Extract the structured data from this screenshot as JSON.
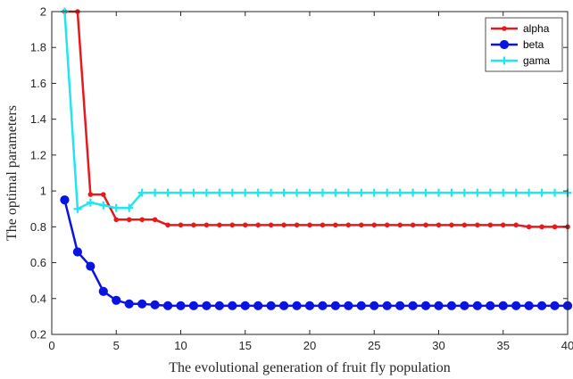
{
  "chart_data": {
    "type": "line",
    "xlabel": "The  evolutional generation of fruit fly population",
    "ylabel": "The optimal parameters",
    "xlim": [
      0,
      40
    ],
    "ylim": [
      0.2,
      2
    ],
    "x_ticks": [
      "0",
      "5",
      "10",
      "15",
      "20",
      "25",
      "30",
      "35",
      "40"
    ],
    "y_ticks": [
      "0.2",
      "0.4",
      "0.6",
      "0.8",
      "1",
      "1.2",
      "1.4",
      "1.6",
      "1.8",
      "2"
    ],
    "grid": false,
    "legend_position": "top-right",
    "x": [
      1,
      2,
      3,
      4,
      5,
      6,
      7,
      8,
      9,
      10,
      11,
      12,
      13,
      14,
      15,
      16,
      17,
      18,
      19,
      20,
      21,
      22,
      23,
      24,
      25,
      26,
      27,
      28,
      29,
      30,
      31,
      32,
      33,
      34,
      35,
      36,
      37,
      38,
      39,
      40
    ],
    "series": [
      {
        "name": "alpha",
        "color": "#e41a1c",
        "marker": "dot",
        "values": [
          2,
          2,
          0.98,
          0.98,
          0.84,
          0.84,
          0.84,
          0.84,
          0.81,
          0.81,
          0.81,
          0.81,
          0.81,
          0.81,
          0.81,
          0.81,
          0.81,
          0.81,
          0.81,
          0.81,
          0.81,
          0.81,
          0.81,
          0.81,
          0.81,
          0.81,
          0.81,
          0.81,
          0.81,
          0.81,
          0.81,
          0.81,
          0.81,
          0.81,
          0.81,
          0.81,
          0.8,
          0.8,
          0.8,
          0.8
        ]
      },
      {
        "name": "beta",
        "color": "#0a14e0",
        "marker": "circle",
        "values": [
          0.95,
          0.66,
          0.58,
          0.44,
          0.39,
          0.37,
          0.37,
          0.365,
          0.36,
          0.36,
          0.36,
          0.36,
          0.36,
          0.36,
          0.36,
          0.36,
          0.36,
          0.36,
          0.36,
          0.36,
          0.36,
          0.36,
          0.36,
          0.36,
          0.36,
          0.36,
          0.36,
          0.36,
          0.36,
          0.36,
          0.36,
          0.36,
          0.36,
          0.36,
          0.36,
          0.36,
          0.36,
          0.36,
          0.36,
          0.36
        ]
      },
      {
        "name": "gama",
        "color": "#22e6ee",
        "marker": "plus",
        "values": [
          2,
          0.9,
          0.935,
          0.92,
          0.905,
          0.905,
          0.99,
          0.99,
          0.99,
          0.99,
          0.99,
          0.99,
          0.99,
          0.99,
          0.99,
          0.99,
          0.99,
          0.99,
          0.99,
          0.99,
          0.99,
          0.99,
          0.99,
          0.99,
          0.99,
          0.99,
          0.99,
          0.99,
          0.99,
          0.99,
          0.99,
          0.99,
          0.99,
          0.99,
          0.99,
          0.99,
          0.99,
          0.99,
          0.99,
          0.99
        ]
      }
    ]
  }
}
